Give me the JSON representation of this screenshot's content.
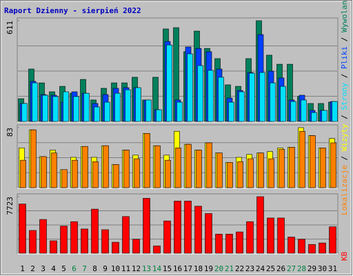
{
  "title": "Raport Dzienny -  sierpień 2022",
  "legend_separator": "/",
  "chart_data": [
    {
      "type": "bar",
      "ylim": [
        0,
        611
      ],
      "yticks": [
        611
      ],
      "grid_divisions": 4,
      "series": [
        {
          "name": "Wywolania",
          "color": "#00805c",
          "values": [
            138,
            318,
            234,
            180,
            213,
            171,
            255,
            130,
            201,
            234,
            234,
            268,
            130,
            268,
            561,
            569,
            423,
            548,
            443,
            381,
            222,
            213,
            381,
            611,
            402,
            347,
            347,
            151,
            109,
            109,
            117
          ]
        },
        {
          "name": "Pliki",
          "color": "#0040ff",
          "values": [
            109,
            243,
            163,
            159,
            117,
            180,
            171,
            109,
            163,
            201,
            205,
            205,
            130,
            71,
            485,
            130,
            452,
            443,
            423,
            318,
            142,
            188,
            297,
            527,
            305,
            264,
            130,
            159,
            67,
            67,
            121
          ]
        },
        {
          "name": "Strony",
          "color": "#00e0ff",
          "values": [
            109,
            234,
            159,
            151,
            180,
            151,
            171,
            88,
            117,
            171,
            192,
            205,
            130,
            71,
            464,
            117,
            410,
            339,
            310,
            268,
            117,
            180,
            293,
            297,
            234,
            213,
            121,
            130,
            54,
            67,
            121
          ]
        }
      ]
    },
    {
      "type": "bar",
      "ylim": [
        0,
        83
      ],
      "yticks": [
        83
      ],
      "grid_divisions": 4,
      "series": [
        {
          "name": "Wizyty",
          "color": "#ffff00",
          "values": [
            55,
            80,
            43,
            52,
            25,
            42,
            57,
            42,
            58,
            32,
            52,
            45,
            75,
            58,
            45,
            78,
            60,
            52,
            62,
            48,
            35,
            42,
            46,
            48,
            50,
            55,
            56,
            83,
            72,
            55,
            68
          ]
        },
        {
          "name": "Lokalizacje",
          "color": "#ff8000",
          "values": [
            38,
            80,
            43,
            48,
            25,
            38,
            57,
            36,
            58,
            32,
            52,
            40,
            75,
            58,
            38,
            55,
            60,
            52,
            62,
            48,
            35,
            36,
            40,
            48,
            40,
            53,
            56,
            78,
            72,
            55,
            62
          ]
        }
      ]
    },
    {
      "type": "bar",
      "ylim": [
        0,
        7723
      ],
      "yticks": [
        7723
      ],
      "grid_divisions": 4,
      "categories": [
        "1",
        "2",
        "3",
        "4",
        "5",
        "6",
        "7",
        "8",
        "9",
        "10",
        "11",
        "12",
        "13",
        "14",
        "15",
        "16",
        "17",
        "18",
        "19",
        "20",
        "21",
        "22",
        "23",
        "24",
        "25",
        "26",
        "27",
        "28",
        "29",
        "30",
        "31"
      ],
      "category_colors": [
        "#000000",
        "#000000",
        "#000000",
        "#000000",
        "#000000",
        "#008040",
        "#008040",
        "#000000",
        "#000000",
        "#000000",
        "#000000",
        "#000000",
        "#008040",
        "#008040",
        "#000000",
        "#000000",
        "#000000",
        "#000000",
        "#000000",
        "#008040",
        "#008040",
        "#000000",
        "#000000",
        "#000000",
        "#000000",
        "#000000",
        "#008040",
        "#008040",
        "#000000",
        "#000000",
        "#000000"
      ],
      "series": [
        {
          "name": "KB",
          "color": "#ff0000",
          "values": [
            6720,
            3110,
            4610,
            1700,
            3710,
            4310,
            3310,
            6020,
            3210,
            1500,
            5010,
            1910,
            7500,
            1000,
            4410,
            7120,
            7120,
            6420,
            5420,
            2610,
            2610,
            2910,
            4310,
            7723,
            4810,
            4810,
            2210,
            1910,
            1200,
            1400,
            3610
          ]
        }
      ]
    }
  ]
}
